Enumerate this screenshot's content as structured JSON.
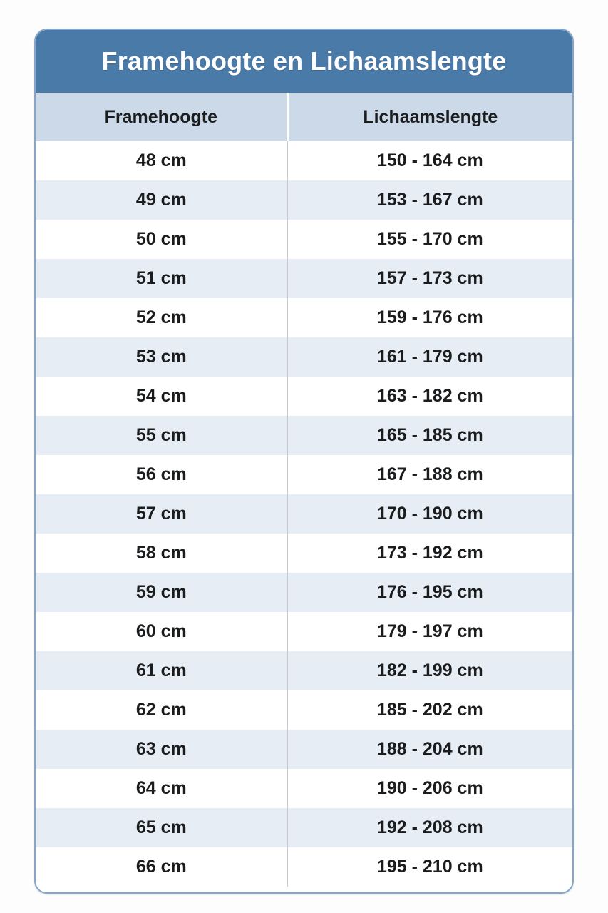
{
  "title_bar": {
    "text": "Framehoogte en Lichaamslengte"
  },
  "chart_data": {
    "type": "table",
    "title": "Framehoogte en Lichaamslengte",
    "columns": [
      "Framehoogte",
      "Lichaamslengte"
    ],
    "rows": [
      [
        "48 cm",
        "150 - 164 cm"
      ],
      [
        "49 cm",
        "153 - 167 cm"
      ],
      [
        "50 cm",
        "155 - 170 cm"
      ],
      [
        "51 cm",
        "157 - 173 cm"
      ],
      [
        "52 cm",
        "159 - 176 cm"
      ],
      [
        "53 cm",
        "161 - 179 cm"
      ],
      [
        "54 cm",
        "163 - 182 cm"
      ],
      [
        "55 cm",
        "165 - 185 cm"
      ],
      [
        "56 cm",
        "167 - 188 cm"
      ],
      [
        "57 cm",
        "170 - 190 cm"
      ],
      [
        "58 cm",
        "173 - 192 cm"
      ],
      [
        "59 cm",
        "176 - 195 cm"
      ],
      [
        "60 cm",
        "179 - 197 cm"
      ],
      [
        "61 cm",
        "182 - 199 cm"
      ],
      [
        "62 cm",
        "185 - 202 cm"
      ],
      [
        "63 cm",
        "188 - 204 cm"
      ],
      [
        "64 cm",
        "190 - 206 cm"
      ],
      [
        "65 cm",
        "192 - 208 cm"
      ],
      [
        "66 cm",
        "195 - 210 cm"
      ]
    ],
    "layout": {
      "striped": true,
      "first_row_background": "white",
      "grid": "vertical-divider-only"
    }
  },
  "colors": {
    "title_bg": "#4a7aa8",
    "header_bg": "#ccd9e8",
    "row_alt_bg": "#e6edf4",
    "row_bg": "#ffffff",
    "card_border": "#86a6c9",
    "cell_text": "#1b1c1e",
    "title_text": "#ffffff"
  }
}
